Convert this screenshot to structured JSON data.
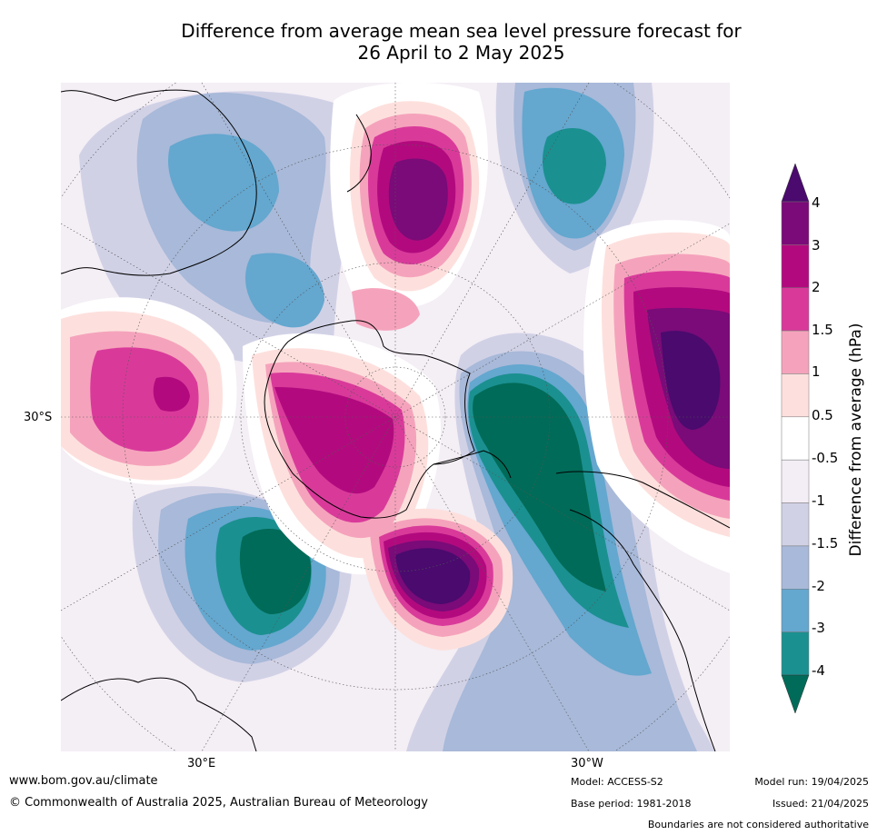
{
  "title": {
    "line1": "Difference from average mean sea level pressure forecast for",
    "line2": "26 April to 2 May 2025"
  },
  "map": {
    "projection": "south polar stereographic",
    "axis_labels": {
      "left": "30°S",
      "bottom_left": "30°E",
      "bottom_right": "30°W"
    },
    "features": [
      {
        "label": "positive anomaly over New Zealand",
        "sign": "positive",
        "max_level": "3 to 4"
      },
      {
        "label": "positive anomaly south of Africa (Indian Ocean)",
        "sign": "positive",
        "max_level": "2 to 3"
      },
      {
        "label": "positive anomaly over the South Atlantic",
        "sign": "positive",
        "max_level": "4"
      },
      {
        "label": "positive anomaly over East Antarctica",
        "sign": "positive",
        "max_level": "2 to 3"
      },
      {
        "label": "positive anomaly south of South America",
        "sign": "positive",
        "max_level": "4"
      },
      {
        "label": "negative anomaly over the Weddell Sea / Antarctic Peninsula",
        "sign": "negative",
        "min_level": "-4"
      },
      {
        "label": "negative anomaly south of Africa",
        "sign": "negative",
        "min_level": "-4"
      },
      {
        "label": "negative anomaly over the South Pacific",
        "sign": "negative",
        "min_level": "-3 to -4"
      },
      {
        "label": "negative anomaly over southern Australia",
        "sign": "negative",
        "min_level": "-2 to -3"
      }
    ]
  },
  "colorbar": {
    "title": "Difference from average (hPa)",
    "tick_labels": [
      "4",
      "3",
      "2",
      "1.5",
      "1",
      "0.5",
      "-0.5",
      "-1",
      "-1.5",
      "-2",
      "-3",
      "-4"
    ],
    "colors_top_to_bottom": [
      "#4a0a6e",
      "#7a0b78",
      "#b20a7e",
      "#d93a9a",
      "#f5a3bc",
      "#fde0dd",
      "#ffffff",
      "#f3edf5",
      "#d1d1e6",
      "#a8b9d9",
      "#64a7cf",
      "#1b9090",
      "#006b58"
    ]
  },
  "footer": {
    "url": "www.bom.gov.au/climate",
    "copyright": "© Commonwealth of Australia 2025, Australian Bureau of Meteorology",
    "model": "Model: ACCESS-S2",
    "base_period": "Base period: 1981-2018",
    "model_run": "Model run: 19/04/2025",
    "issued": "Issued: 21/04/2025",
    "disclaimer": "Boundaries are not considered authoritative"
  }
}
